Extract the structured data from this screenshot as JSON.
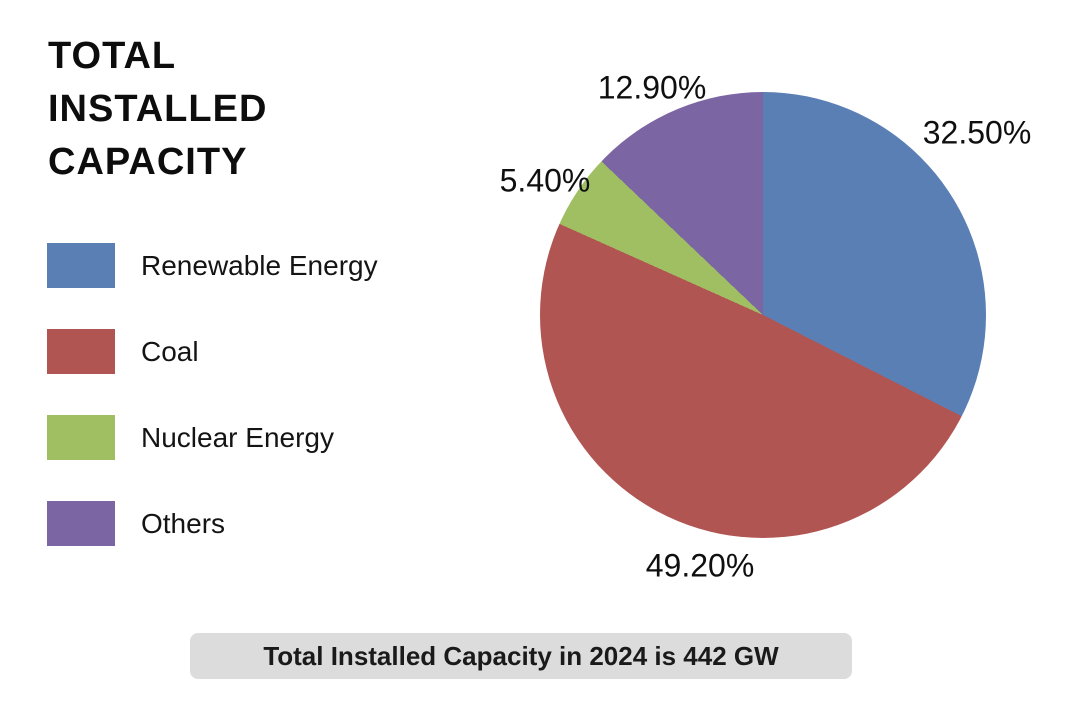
{
  "chart_data": {
    "type": "pie",
    "title": "TOTAL INSTALLED CAPACITY",
    "start_angle_deg": 0,
    "direction": "clockwise",
    "legend_position": "left",
    "slices": [
      {
        "label": "Renewable Energy",
        "value": 32.5,
        "pct_label": "32.50%",
        "color": "#5a7fb5"
      },
      {
        "label": "Coal",
        "value": 49.2,
        "pct_label": "49.20%",
        "color": "#b15552"
      },
      {
        "label": "Nuclear Energy",
        "value": 5.4,
        "pct_label": "5.40%",
        "color": "#a0bf62"
      },
      {
        "label": "Others",
        "value": 12.9,
        "pct_label": "12.90%",
        "color": "#7b66a3"
      }
    ],
    "caption": "Total Installed Capacity in 2024 is 442 GW",
    "caption_bg": "#dcdcdc"
  }
}
